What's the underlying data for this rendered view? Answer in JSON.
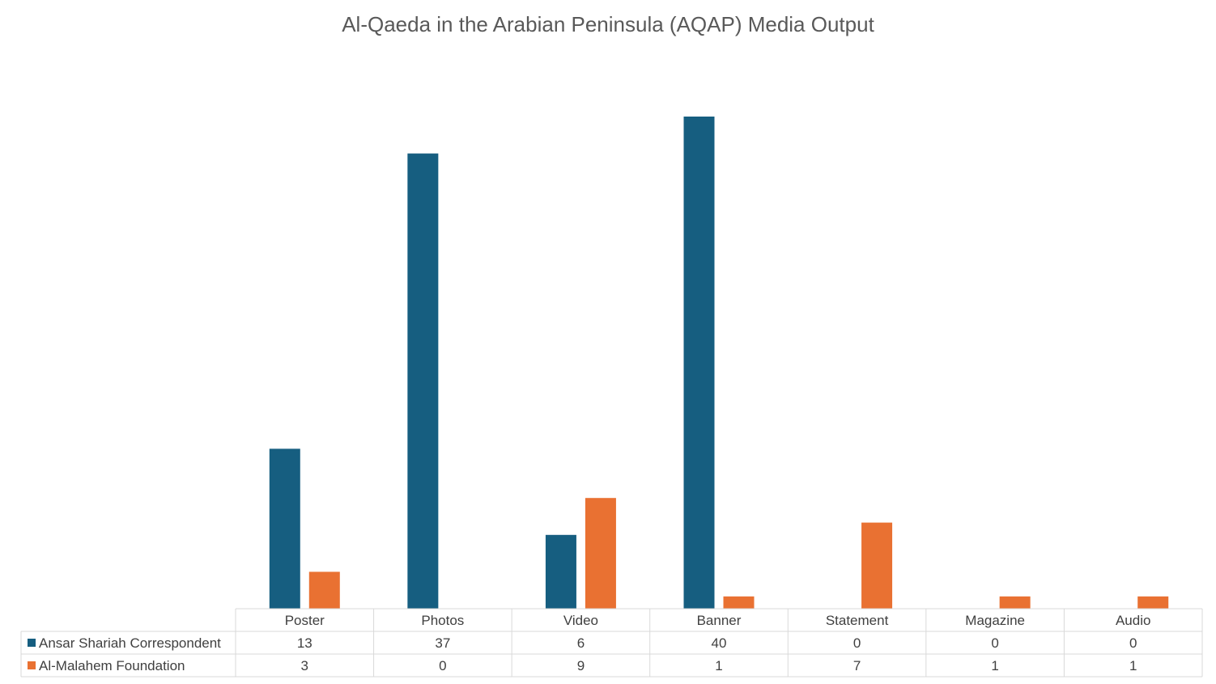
{
  "chart_data": {
    "type": "bar",
    "title": "Al-Qaeda in the Arabian Peninsula (AQAP) Media Output",
    "xlabel": "",
    "ylabel": "",
    "categories": [
      "Poster",
      "Photos",
      "Video",
      "Banner",
      "Statement",
      "Magazine",
      "Audio"
    ],
    "series": [
      {
        "name": "Ansar Shariah Correspondent",
        "color": "#165e80",
        "values": [
          13,
          37,
          6,
          40,
          0,
          0,
          0
        ]
      },
      {
        "name": "Al-Malahem Foundation",
        "color": "#e97132",
        "values": [
          3,
          0,
          9,
          1,
          7,
          1,
          1
        ]
      }
    ],
    "ylim": [
      0,
      40
    ],
    "grid": false,
    "legend": "data-table"
  }
}
